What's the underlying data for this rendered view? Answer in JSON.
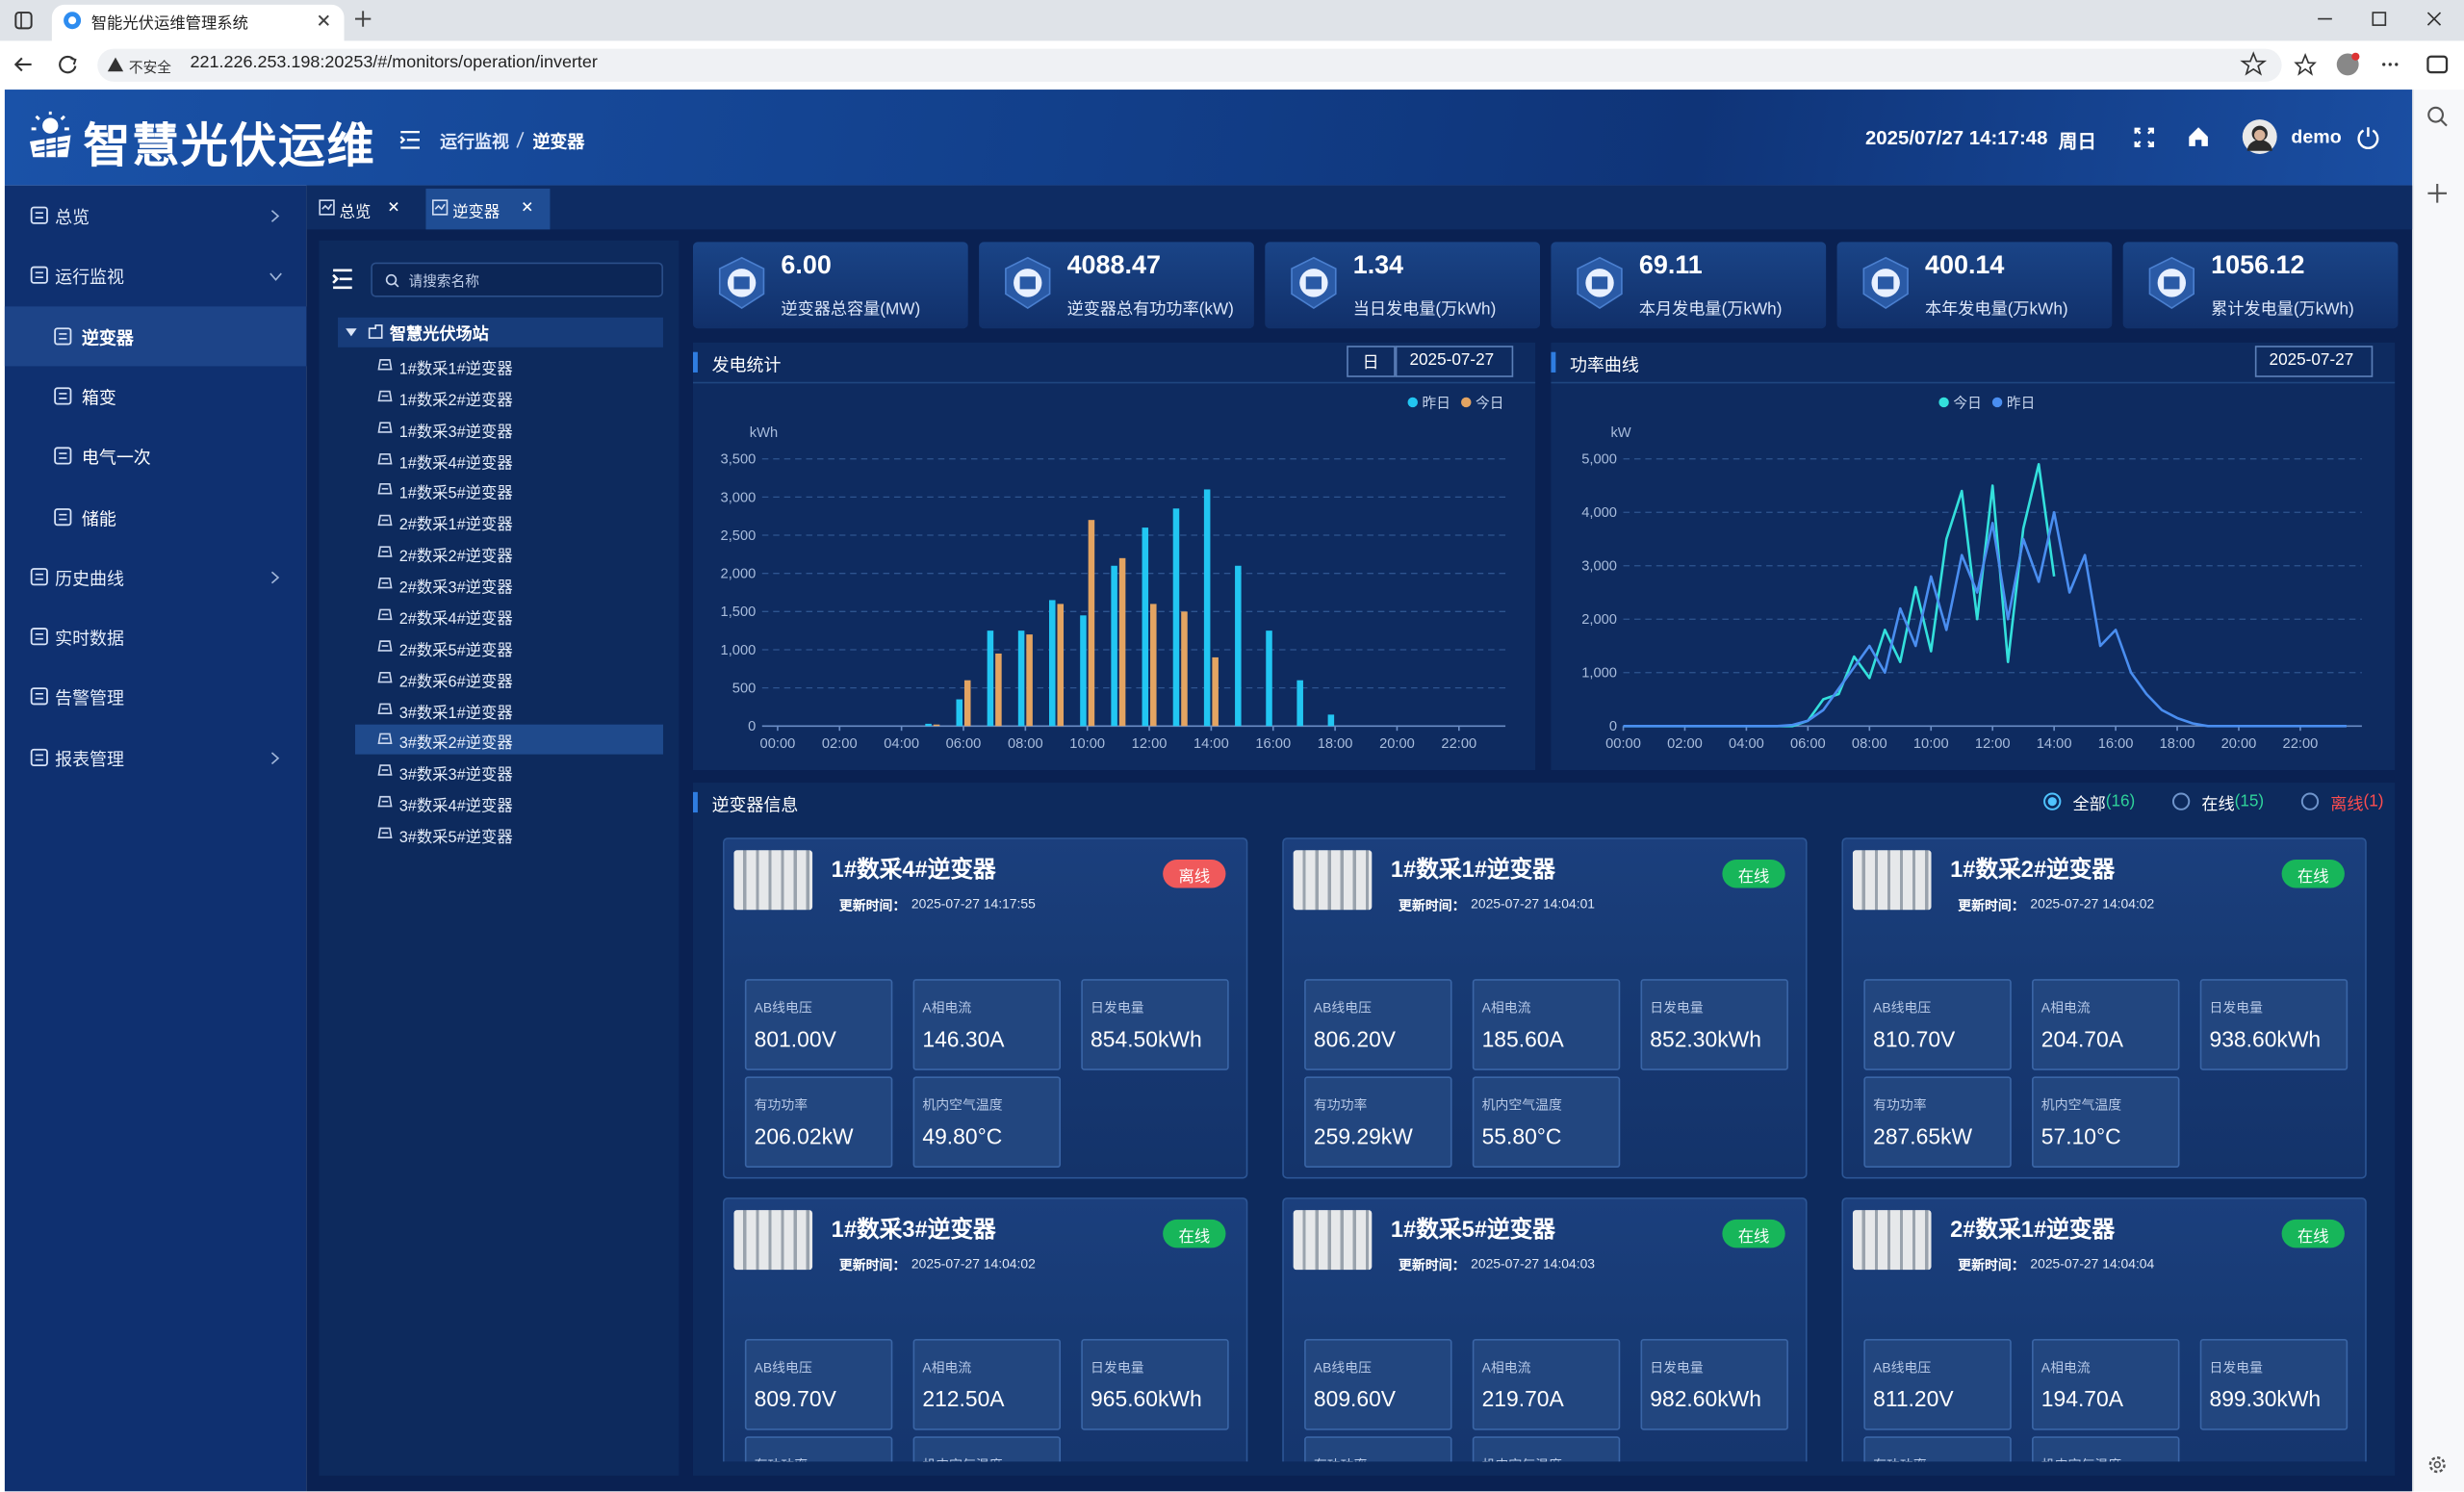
{
  "browser": {
    "tab_title": "智能光伏运维管理系统",
    "security": "不安全",
    "url": "221.226.253.198:20253/#/monitors/operation/inverter"
  },
  "header": {
    "logo": "智慧光伏运维",
    "breadcrumb": [
      "运行监视",
      "逆变器"
    ],
    "datetime": "2025/07/27 14:17:48",
    "weekday": "周日",
    "user": "demo"
  },
  "sidebar": [
    {
      "label": "总览",
      "expandable": true
    },
    {
      "label": "运行监视",
      "children": [
        "逆变器",
        "箱变",
        "电气一次",
        "储能"
      ],
      "selected": 0
    },
    {
      "label": "历史曲线",
      "expandable": true
    },
    {
      "label": "实时数据"
    },
    {
      "label": "告警管理"
    },
    {
      "label": "报表管理",
      "expandable": true
    }
  ],
  "tabs": [
    {
      "label": "总览"
    },
    {
      "label": "逆变器",
      "active": true
    }
  ],
  "tree": {
    "search_placeholder": "请搜索名称",
    "root": "智慧光伏场站",
    "selected": 12,
    "items": [
      "1#数采1#逆变器",
      "1#数采2#逆变器",
      "1#数采3#逆变器",
      "1#数采4#逆变器",
      "1#数采5#逆变器",
      "2#数采1#逆变器",
      "2#数采2#逆变器",
      "2#数采3#逆变器",
      "2#数采4#逆变器",
      "2#数采5#逆变器",
      "2#数采6#逆变器",
      "3#数采1#逆变器",
      "3#数采2#逆变器",
      "3#数采3#逆变器",
      "3#数采4#逆变器",
      "3#数采5#逆变器"
    ]
  },
  "stats": [
    {
      "value": "6.00",
      "label": "逆变器总容量(MW)"
    },
    {
      "value": "4088.47",
      "label": "逆变器总有功功率(kW)"
    },
    {
      "value": "1.34",
      "label": "当日发电量(万kWh)"
    },
    {
      "value": "69.11",
      "label": "本月发电量(万kWh)"
    },
    {
      "value": "400.14",
      "label": "本年发电量(万kWh)"
    },
    {
      "value": "1056.12",
      "label": "累计发电量(万kWh)"
    }
  ],
  "chart_data": [
    {
      "type": "bar",
      "title": "发电统计",
      "period": "日",
      "date": "2025-07-27",
      "y_label": "kWh",
      "legend": "top-right",
      "grid": true,
      "categories": [
        "00:00",
        null,
        "02:00",
        null,
        "04:00",
        null,
        "06:00",
        null,
        "08:00",
        null,
        "10:00",
        null,
        "12:00",
        null,
        "14:00",
        null,
        "16:00",
        null,
        "18:00",
        null,
        "20:00",
        null,
        "22:00",
        null
      ],
      "series": [
        {
          "name": "昨日",
          "color": "#22c6f2",
          "values": [
            0,
            0,
            0,
            0,
            0,
            30,
            350,
            1250,
            1250,
            1650,
            1450,
            2100,
            2600,
            2850,
            3100,
            2100,
            1250,
            600,
            150,
            0,
            0,
            0,
            0,
            0
          ]
        },
        {
          "name": "今日",
          "color": "#e3a462",
          "values": [
            0,
            0,
            0,
            0,
            0,
            20,
            600,
            950,
            1200,
            1600,
            2700,
            2200,
            1600,
            1500,
            900,
            null,
            null,
            null,
            null,
            null,
            null,
            null,
            null,
            null
          ]
        }
      ],
      "ylim": [
        0,
        3500
      ],
      "yticks": [
        0,
        500,
        {
          "value": 1000,
          "label": "1,000"
        },
        {
          "value": 1500,
          "label": "1,500"
        },
        {
          "value": 2000,
          "label": "2,000"
        },
        {
          "value": 2500,
          "label": "2,500"
        },
        {
          "value": 3000,
          "label": "3,000"
        },
        {
          "value": 3500,
          "label": "3,500"
        }
      ]
    },
    {
      "type": "line",
      "title": "功率曲线",
      "date": "2025-07-27",
      "y_label": "kW",
      "legend": "top-center",
      "grid": true,
      "categories": [
        "00:00",
        null,
        null,
        null,
        "02:00",
        null,
        null,
        null,
        "04:00",
        null,
        null,
        null,
        "06:00",
        null,
        null,
        null,
        "08:00",
        null,
        null,
        null,
        "10:00",
        null,
        null,
        null,
        "12:00",
        null,
        null,
        null,
        "14:00",
        null,
        null,
        null,
        "16:00",
        null,
        null,
        null,
        "18:00",
        null,
        null,
        null,
        "20:00",
        null,
        null,
        null,
        "22:00",
        null,
        null,
        null
      ],
      "series": [
        {
          "name": "今日",
          "color": "#33e0dc",
          "values": [
            0,
            0,
            0,
            0,
            0,
            0,
            0,
            0,
            0,
            0,
            0,
            0,
            100,
            500,
            600,
            1300,
            900,
            1800,
            1200,
            2600,
            1400,
            3500,
            4400,
            2000,
            4500,
            1200,
            3700,
            4900,
            2800,
            null,
            null,
            null,
            null,
            null,
            null,
            null,
            null,
            null,
            null,
            null,
            null,
            null,
            null,
            null,
            null,
            null,
            null,
            null
          ]
        },
        {
          "name": "昨日",
          "color": "#4a8ef0",
          "values": [
            0,
            0,
            0,
            0,
            0,
            0,
            0,
            0,
            0,
            0,
            0,
            20,
            100,
            300,
            700,
            1100,
            1500,
            1000,
            2200,
            1500,
            2800,
            1800,
            3200,
            2500,
            3800,
            2000,
            3500,
            2700,
            4000,
            2500,
            3200,
            1500,
            1800,
            1000,
            600,
            300,
            150,
            50,
            0,
            0,
            0,
            0,
            0,
            0,
            0,
            0,
            0,
            0
          ]
        }
      ],
      "ylim": [
        0,
        5000
      ],
      "yticks": [
        0,
        {
          "value": 1000,
          "label": "1,000"
        },
        {
          "value": 2000,
          "label": "2,000"
        },
        {
          "value": 3000,
          "label": "3,000"
        },
        {
          "value": 4000,
          "label": "4,000"
        },
        {
          "value": 5000,
          "label": "5,000"
        }
      ]
    }
  ],
  "inverter_info": {
    "title": "逆变器信息",
    "filters": [
      {
        "label": "全部",
        "count": "(16)",
        "color": "#ffffff",
        "count_color": "#2fd39a",
        "checked": true
      },
      {
        "label": "在线",
        "count": "(15)",
        "color": "#ffffff",
        "count_color": "#2fd39a"
      },
      {
        "label": "离线",
        "count": "(1)",
        "color": "#ff4d4f",
        "count_color": "#ff4d4f"
      }
    ],
    "update_label": "更新时间：",
    "cards": [
      {
        "name": "1#数采4#逆变器",
        "status": "离线",
        "status_color": "#f0595b",
        "update_time": "2025-07-27 14:17:55",
        "fields": [
          {
            "label": "AB线电压",
            "value": "801.00V"
          },
          {
            "label": "A相电流",
            "value": "146.30A"
          },
          {
            "label": "日发电量",
            "value": "854.50kWh"
          },
          {
            "label": "有功功率",
            "value": "206.02kW"
          },
          {
            "label": "机内空气温度",
            "value": "49.80°C"
          }
        ]
      },
      {
        "name": "1#数采1#逆变器",
        "status": "在线",
        "status_color": "#17b65a",
        "update_time": "2025-07-27 14:04:01",
        "fields": [
          {
            "label": "AB线电压",
            "value": "806.20V"
          },
          {
            "label": "A相电流",
            "value": "185.60A"
          },
          {
            "label": "日发电量",
            "value": "852.30kWh"
          },
          {
            "label": "有功功率",
            "value": "259.29kW"
          },
          {
            "label": "机内空气温度",
            "value": "55.80°C"
          }
        ]
      },
      {
        "name": "1#数采2#逆变器",
        "status": "在线",
        "status_color": "#17b65a",
        "update_time": "2025-07-27 14:04:02",
        "fields": [
          {
            "label": "AB线电压",
            "value": "810.70V"
          },
          {
            "label": "A相电流",
            "value": "204.70A"
          },
          {
            "label": "日发电量",
            "value": "938.60kWh"
          },
          {
            "label": "有功功率",
            "value": "287.65kW"
          },
          {
            "label": "机内空气温度",
            "value": "57.10°C"
          }
        ]
      },
      {
        "name": "1#数采3#逆变器",
        "status": "在线",
        "status_color": "#17b65a",
        "update_time": "2025-07-27 14:04:02",
        "fields": [
          {
            "label": "AB线电压",
            "value": "809.70V"
          },
          {
            "label": "A相电流",
            "value": "212.50A"
          },
          {
            "label": "日发电量",
            "value": "965.60kWh"
          },
          {
            "label": "有功功率"
          },
          {
            "label": "机内空气温度"
          }
        ]
      },
      {
        "name": "1#数采5#逆变器",
        "status": "在线",
        "status_color": "#17b65a",
        "update_time": "2025-07-27 14:04:03",
        "fields": [
          {
            "label": "AB线电压",
            "value": "809.60V"
          },
          {
            "label": "A相电流",
            "value": "219.70A"
          },
          {
            "label": "日发电量",
            "value": "982.60kWh"
          },
          {
            "label": "有功功率"
          },
          {
            "label": "机内空气温度"
          }
        ]
      },
      {
        "name": "2#数采1#逆变器",
        "status": "在线",
        "status_color": "#17b65a",
        "update_time": "2025-07-27 14:04:04",
        "fields": [
          {
            "label": "AB线电压",
            "value": "811.20V"
          },
          {
            "label": "A相电流",
            "value": "194.70A"
          },
          {
            "label": "日发电量",
            "value": "899.30kWh"
          },
          {
            "label": "有功功率"
          },
          {
            "label": "机内空气温度"
          }
        ]
      }
    ]
  }
}
